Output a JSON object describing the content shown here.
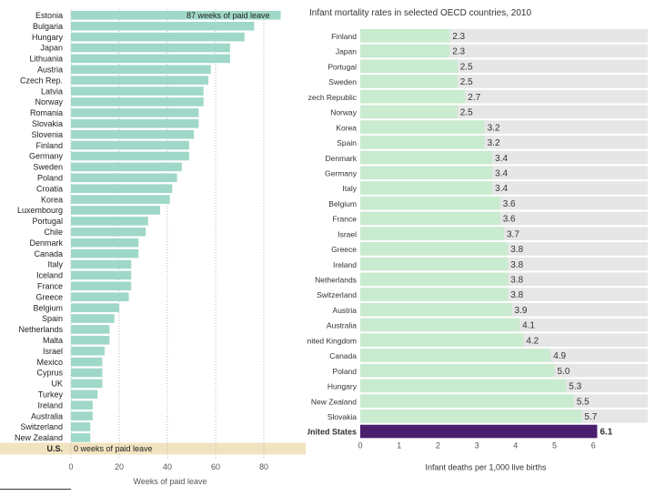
{
  "chart_data": [
    {
      "type": "bar",
      "orientation": "horizontal",
      "title": "",
      "xlabel": "Weeks of paid leave",
      "ylabel": "",
      "xlim": [
        0,
        88
      ],
      "xticks": [
        0,
        20,
        40,
        60,
        80
      ],
      "annotations": {
        "top": "87 weeks of paid leave",
        "us": "0 weeks of paid leave"
      },
      "categories": [
        "Estonia",
        "Bulgaria",
        "Hungary",
        "Japan",
        "Lithuania",
        "Austria",
        "Czech Rep.",
        "Latvia",
        "Norway",
        "Romania",
        "Slovakia",
        "Slovenia",
        "Finland",
        "Germany",
        "Sweden",
        "Poland",
        "Croatia",
        "Korea",
        "Luxembourg",
        "Portugal",
        "Chile",
        "Denmark",
        "Canada",
        "Italy",
        "Iceland",
        "France",
        "Greece",
        "Belgium",
        "Spain",
        "Netherlands",
        "Malta",
        "Israel",
        "Mexico",
        "Cyprus",
        "UK",
        "Turkey",
        "Ireland",
        "Australia",
        "Switzerland",
        "New Zealand",
        "U.S."
      ],
      "values": [
        87,
        76,
        72,
        66,
        66,
        58,
        57,
        55,
        55,
        53,
        53,
        51,
        49,
        49,
        46,
        44,
        42,
        41,
        37,
        32,
        31,
        28,
        28,
        25,
        25,
        25,
        24,
        20,
        18,
        16,
        16,
        14,
        13,
        13,
        13,
        11,
        9,
        9,
        8,
        8,
        0
      ],
      "colors": {
        "bar": "#9fd8c8",
        "highlight_band": "#f2e3c0",
        "text": "#222222"
      }
    },
    {
      "type": "bar",
      "orientation": "horizontal",
      "title": "Infant mortality rates in selected OECD countries, 2010",
      "xlabel": "Infant deaths per 1,000 live births",
      "ylabel": "",
      "xlim": [
        0,
        6.3
      ],
      "xticks": [
        0,
        1,
        2,
        3,
        4,
        5,
        6
      ],
      "categories": [
        "Finland",
        "Japan",
        "Portugal",
        "Sweden",
        "Czech Republic",
        "Norway",
        "Korea",
        "Spain",
        "Denmark",
        "Germany",
        "Italy",
        "Belgium",
        "France",
        "Israel",
        "Greece",
        "Ireland",
        "Netherlands",
        "Switzerland",
        "Austria",
        "Australia",
        "United Kingdom",
        "Canada",
        "Poland",
        "Hungary",
        "New Zealand",
        "Slovakia",
        "United States"
      ],
      "values": [
        2.3,
        2.3,
        2.5,
        2.5,
        2.7,
        2.5,
        3.2,
        3.2,
        3.4,
        3.4,
        3.4,
        3.6,
        3.6,
        3.7,
        3.8,
        3.8,
        3.8,
        3.8,
        3.9,
        4.1,
        4.2,
        4.9,
        5.0,
        5.3,
        5.5,
        5.7,
        6.1
      ],
      "colors": {
        "bar": "#c9ebcf",
        "highlight_bar": "#4a1f6e",
        "band": "#e6e6e6",
        "text": "#333333"
      }
    }
  ]
}
